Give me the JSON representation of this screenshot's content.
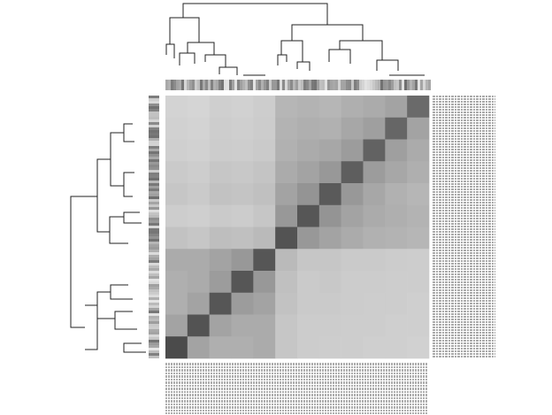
{
  "chart_data": {
    "type": "heatmap",
    "color_range": [
      "#f0f0f0",
      "#303030"
    ],
    "values": [
      [
        0.15,
        0.14,
        0.17,
        0.16,
        0.18,
        0.3,
        0.32,
        0.3,
        0.34,
        0.36,
        0.4,
        0.7
      ],
      [
        0.16,
        0.15,
        0.18,
        0.17,
        0.19,
        0.32,
        0.34,
        0.33,
        0.38,
        0.42,
        0.72,
        0.4
      ],
      [
        0.17,
        0.16,
        0.19,
        0.18,
        0.2,
        0.33,
        0.36,
        0.38,
        0.44,
        0.74,
        0.42,
        0.36
      ],
      [
        0.2,
        0.18,
        0.22,
        0.21,
        0.23,
        0.36,
        0.4,
        0.46,
        0.76,
        0.44,
        0.38,
        0.34
      ],
      [
        0.22,
        0.2,
        0.24,
        0.23,
        0.25,
        0.4,
        0.48,
        0.78,
        0.46,
        0.38,
        0.33,
        0.3
      ],
      [
        0.18,
        0.17,
        0.2,
        0.19,
        0.22,
        0.46,
        0.8,
        0.48,
        0.4,
        0.36,
        0.34,
        0.32
      ],
      [
        0.24,
        0.22,
        0.26,
        0.25,
        0.28,
        0.82,
        0.46,
        0.4,
        0.36,
        0.33,
        0.32,
        0.3
      ],
      [
        0.36,
        0.36,
        0.4,
        0.46,
        0.8,
        0.28,
        0.22,
        0.22,
        0.2,
        0.2,
        0.19,
        0.18
      ],
      [
        0.34,
        0.36,
        0.44,
        0.8,
        0.46,
        0.25,
        0.2,
        0.21,
        0.19,
        0.19,
        0.18,
        0.18
      ],
      [
        0.34,
        0.4,
        0.8,
        0.44,
        0.4,
        0.24,
        0.2,
        0.2,
        0.19,
        0.18,
        0.18,
        0.17
      ],
      [
        0.4,
        0.82,
        0.4,
        0.36,
        0.36,
        0.22,
        0.19,
        0.19,
        0.18,
        0.18,
        0.17,
        0.17
      ],
      [
        0.86,
        0.4,
        0.34,
        0.34,
        0.36,
        0.22,
        0.19,
        0.18,
        0.18,
        0.17,
        0.17,
        0.16
      ]
    ]
  }
}
